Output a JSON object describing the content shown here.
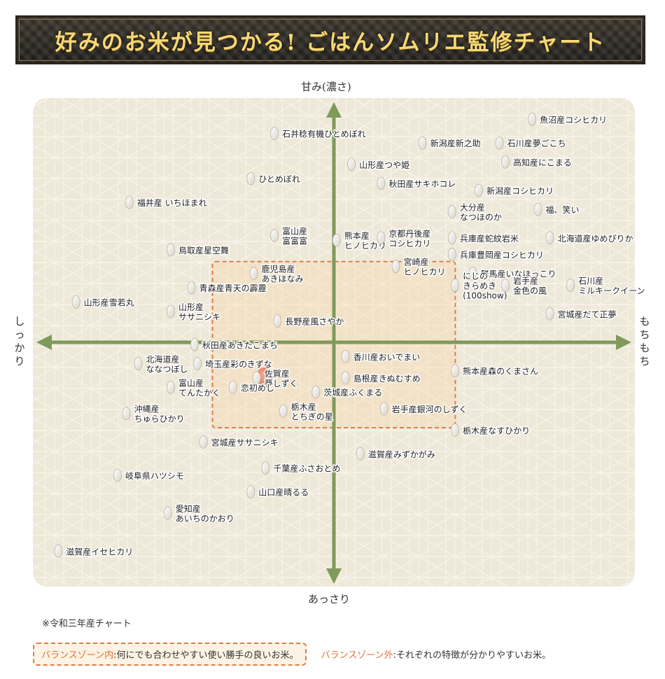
{
  "header": {
    "title": "好みのお米が見つかる! ごはんソムリエ監修チャート"
  },
  "axes": {
    "top": "甘み(濃さ)",
    "bottom": "あっさり",
    "left": "しっかり",
    "right": "もちもち"
  },
  "footnote": "※令和三年産チャート",
  "legend": {
    "balance_in_label": "バランスゾーン内",
    "balance_in_desc": ":何にでも合わせやすい使い勝手の良いお米。",
    "balance_out_label": "バランスゾーン外",
    "balance_out_desc": ":それぞれの特徴が分かりやすいお米。"
  },
  "colors": {
    "axis": "#7f9a5a",
    "balance_zone": "#e07c4a",
    "highlight": "#e07a5f",
    "panel": "#efe9db"
  },
  "chart_data": {
    "type": "scatter",
    "title": "",
    "xlabel_left": "しっかり",
    "xlabel_right": "もちもち",
    "ylabel_top": "甘み(濃さ)",
    "ylabel_bottom": "あっさり",
    "xlim": [
      -100,
      100
    ],
    "ylim": [
      -100,
      100
    ],
    "balance_zone": {
      "x": [
        -41,
        41
      ],
      "y": [
        -36,
        34
      ]
    },
    "points": [
      {
        "label": [
          "魚沼産コシヒカリ"
        ],
        "x": 70,
        "y": 94
      },
      {
        "label": [
          "石井稔有機ひとめぼれ"
        ],
        "x": -17,
        "y": 88
      },
      {
        "label": [
          "新潟産新之助"
        ],
        "x": 33,
        "y": 84
      },
      {
        "label": [
          "石川産夢ごこち"
        ],
        "x": 59,
        "y": 84
      },
      {
        "label": [
          "山形産つや姫"
        ],
        "x": 9,
        "y": 75
      },
      {
        "label": [
          "高知産にこまる"
        ],
        "x": 61,
        "y": 76
      },
      {
        "label": [
          "ひとめぼれ"
        ],
        "x": -25,
        "y": 69
      },
      {
        "label": [
          "秋田産サキホコレ"
        ],
        "x": 19,
        "y": 67
      },
      {
        "label": [
          "新潟産コシヒカリ"
        ],
        "x": 52,
        "y": 64
      },
      {
        "label": [
          "福井産 いちほまれ"
        ],
        "x": -66,
        "y": 59
      },
      {
        "label": [
          "大分産",
          "なつほのか"
        ],
        "x": 43,
        "y": 55
      },
      {
        "label": [
          "福、笑い"
        ],
        "x": 72,
        "y": 56
      },
      {
        "label": [
          "富山産",
          "富富富"
        ],
        "x": -17,
        "y": 45
      },
      {
        "label": [
          "熊本産",
          "ヒノヒカリ"
        ],
        "x": 4,
        "y": 43
      },
      {
        "label": [
          "京都丹後産",
          "コシヒカリ"
        ],
        "x": 19,
        "y": 44
      },
      {
        "label": [
          "兵庫産蛇紋岩米"
        ],
        "x": 43,
        "y": 44
      },
      {
        "label": [
          "北海道産ゆめぴりか"
        ],
        "x": 76,
        "y": 44
      },
      {
        "label": [
          "鳥取産星空舞"
        ],
        "x": -52,
        "y": 39
      },
      {
        "label": [
          "兵庫豊岡産コシヒカリ"
        ],
        "x": 43,
        "y": 37
      },
      {
        "label": [
          "宮崎産",
          "ヒノヒカリ"
        ],
        "x": 24,
        "y": 32
      },
      {
        "label": [
          "鹿児島産",
          "あきほなみ"
        ],
        "x": -24,
        "y": 29
      },
      {
        "label": [
          "群馬産いなほっこり"
        ],
        "x": 50,
        "y": 29
      },
      {
        "label": [
          "青森産青天の霹靂"
        ],
        "x": -45,
        "y": 23
      },
      {
        "label": [
          "にじの",
          "きらめき",
          "(100show)"
        ],
        "x": 44,
        "y": 24
      },
      {
        "label": [
          "岩手産",
          "金色の風"
        ],
        "x": 61,
        "y": 24
      },
      {
        "label": [
          "石川産",
          "ミルキークイーン"
        ],
        "x": 83,
        "y": 24
      },
      {
        "label": [
          "山形産雪若丸"
        ],
        "x": -84,
        "y": 17
      },
      {
        "label": [
          "山形産",
          "ササニシキ"
        ],
        "x": -52,
        "y": 13
      },
      {
        "label": [
          "宮城産だて正夢"
        ],
        "x": 76,
        "y": 12
      },
      {
        "label": [
          "長野産風さやか"
        ],
        "x": -16,
        "y": 9
      },
      {
        "label": [
          "秋田産あきたこまち"
        ],
        "x": -44,
        "y": -1
      },
      {
        "label": [
          "北海道産",
          "ななつぼし"
        ],
        "x": -63,
        "y": -9
      },
      {
        "label": [
          "埼玉産彩のきずな"
        ],
        "x": -43,
        "y": -9
      },
      {
        "label": [
          "香川産おいでまい"
        ],
        "x": 7,
        "y": -6
      },
      {
        "label": [
          "熊本産森のくまさん"
        ],
        "x": 44,
        "y": -12
      },
      {
        "label": [
          "島根産きぬむすめ"
        ],
        "x": 7,
        "y": -15
      },
      {
        "label": [
          "佐賀産",
          "夢しずく"
        ],
        "x": -23,
        "y": -15,
        "highlight": true
      },
      {
        "label": [
          "富山産",
          "てんたかく"
        ],
        "x": -52,
        "y": -19
      },
      {
        "label": [
          "恋初めし"
        ],
        "x": -31,
        "y": -19
      },
      {
        "label": [
          "茨城産ふくまる"
        ],
        "x": -3,
        "y": -21
      },
      {
        "label": [
          "沖縄産",
          "ちゅらひかり"
        ],
        "x": -67,
        "y": -30
      },
      {
        "label": [
          "栃木産",
          "とちぎの星"
        ],
        "x": -14,
        "y": -29
      },
      {
        "label": [
          "岩手産銀河のしずく"
        ],
        "x": 20,
        "y": -28
      },
      {
        "label": [
          "栃木産なすひかり"
        ],
        "x": 44,
        "y": -37
      },
      {
        "label": [
          "宮城産ササニシキ"
        ],
        "x": -41,
        "y": -42
      },
      {
        "label": [
          "滋賀産みずかがみ"
        ],
        "x": 12,
        "y": -47
      },
      {
        "label": [
          "千葉産ふさおとめ"
        ],
        "x": -20,
        "y": -53
      },
      {
        "label": [
          "岐阜県ハツシモ"
        ],
        "x": -70,
        "y": -56
      },
      {
        "label": [
          "山口産晴るる"
        ],
        "x": -25,
        "y": -63
      },
      {
        "label": [
          "愛知産",
          "あいちのかおり"
        ],
        "x": -53,
        "y": -72
      },
      {
        "label": [
          "滋賀産イセヒカリ"
        ],
        "x": -90,
        "y": -88
      }
    ]
  }
}
